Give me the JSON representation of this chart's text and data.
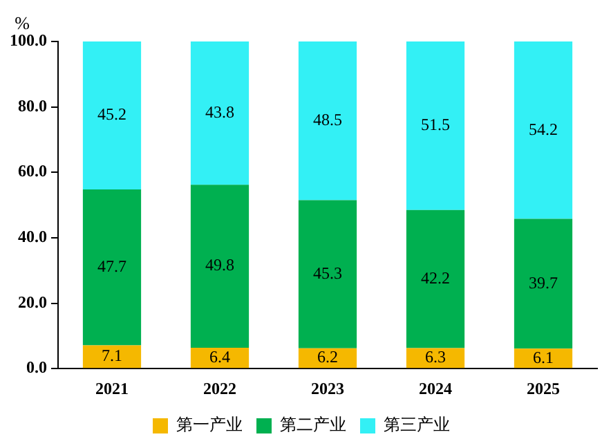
{
  "chart_data": {
    "type": "bar",
    "stacked": true,
    "ylabel": "%",
    "categories": [
      "2021",
      "2022",
      "2023",
      "2024",
      "2025"
    ],
    "series": [
      {
        "name": "第一产业",
        "color": "#f5b800",
        "values": [
          7.1,
          6.4,
          6.2,
          6.3,
          6.1
        ]
      },
      {
        "name": "第二产业",
        "color": "#00b050",
        "values": [
          47.7,
          49.8,
          45.3,
          42.2,
          39.7
        ]
      },
      {
        "name": "第三产业",
        "color": "#33f0f5",
        "values": [
          45.2,
          43.8,
          48.5,
          51.5,
          54.2
        ]
      }
    ],
    "ylim": [
      0,
      100
    ],
    "yticks": [
      {
        "value": 0,
        "label": "0.0"
      },
      {
        "value": 20,
        "label": "20.0"
      },
      {
        "value": 40,
        "label": "40.0"
      },
      {
        "value": 60,
        "label": "60.0"
      },
      {
        "value": 80,
        "label": "80.0"
      },
      {
        "value": 100,
        "label": "100.0"
      }
    ],
    "grid": false,
    "legend": "bottom",
    "data_labels": true
  }
}
